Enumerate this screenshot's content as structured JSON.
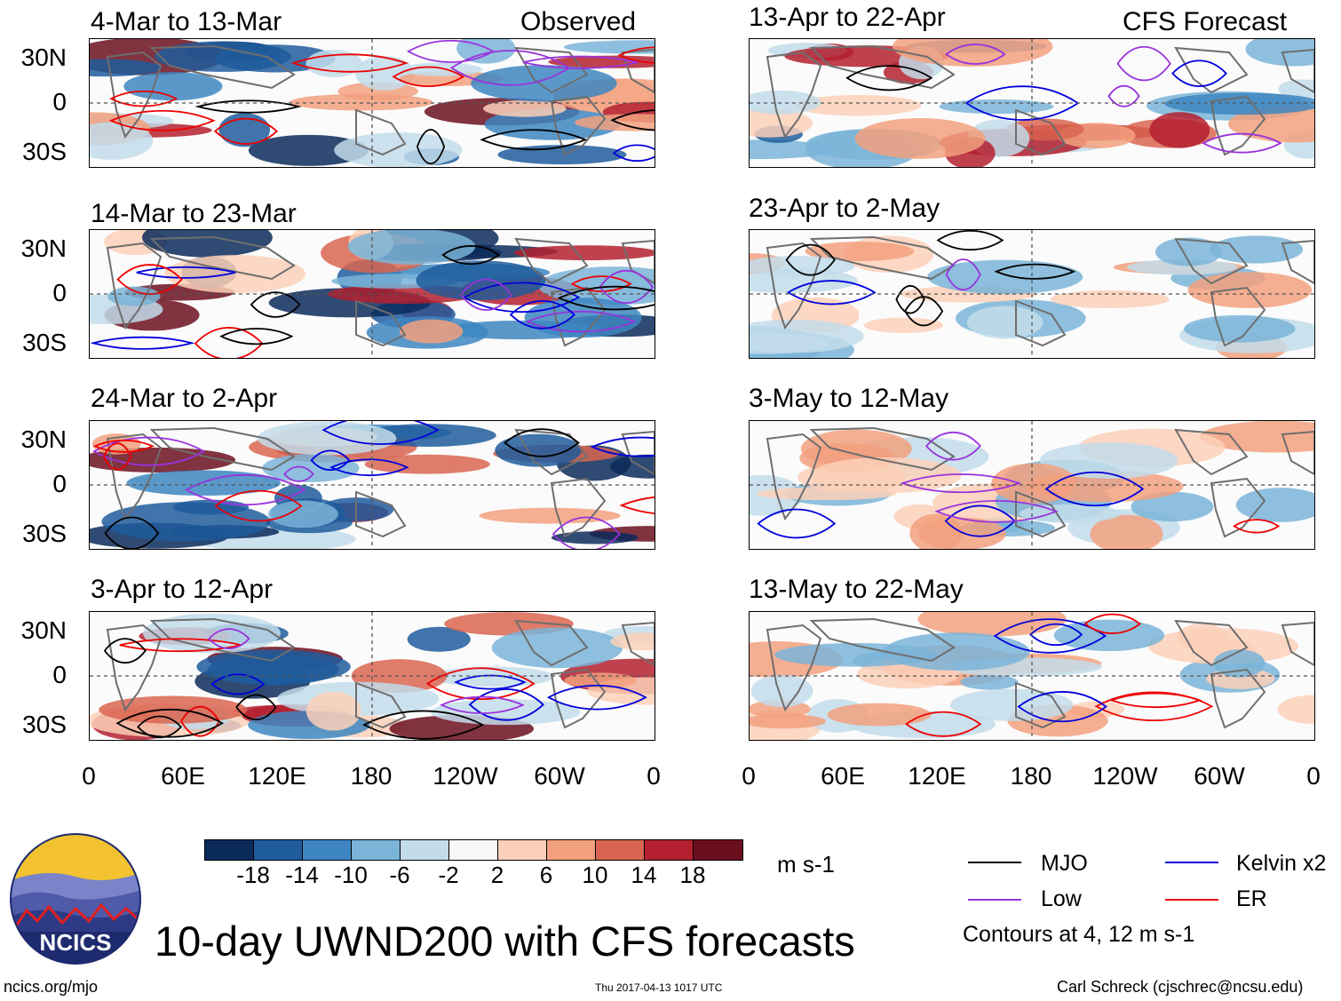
{
  "observed_label": "Observed",
  "forecast_label": "CFS Forecast",
  "panels": [
    {
      "title": "4-Mar to 13-Mar",
      "column": "observed"
    },
    {
      "title": "14-Mar to 23-Mar",
      "column": "observed"
    },
    {
      "title": "24-Mar to 2-Apr",
      "column": "observed"
    },
    {
      "title": "3-Apr to 12-Apr",
      "column": "observed"
    },
    {
      "title": "13-Apr to 22-Apr",
      "column": "forecast"
    },
    {
      "title": "23-Apr to 2-May",
      "column": "forecast"
    },
    {
      "title": "3-May to 12-May",
      "column": "forecast"
    },
    {
      "title": "13-May to 22-May",
      "column": "forecast"
    }
  ],
  "lat_labels": [
    "30N",
    "0",
    "30S"
  ],
  "lon_labels": [
    "0",
    "60E",
    "120E",
    "180",
    "120W",
    "60W",
    "0"
  ],
  "colorbar": {
    "unit": "m s-1",
    "ticks": [
      "-18",
      "-14",
      "-10",
      "-6",
      "-2",
      "2",
      "6",
      "10",
      "14",
      "18"
    ],
    "colors": [
      "#0a2a5a",
      "#1f5c9c",
      "#3d86c1",
      "#7ab4d8",
      "#c2dcea",
      "#f7f7f7",
      "#fbd0b8",
      "#f2a07e",
      "#d96550",
      "#b4202f",
      "#6b0f1e"
    ]
  },
  "legend": {
    "items": [
      {
        "label": "MJO",
        "color": "#000000"
      },
      {
        "label": "Kelvin x2",
        "color": "#0000dd"
      },
      {
        "label": "Low",
        "color": "#9932dd"
      },
      {
        "label": "ER",
        "color": "#ee0000"
      }
    ],
    "note": "Contours at 4, 12 m s-1"
  },
  "logo_text": "NCICS",
  "main_title": "10-day UWND200 with CFS forecasts",
  "footer": {
    "left": "ncics.org/mjo",
    "center": "Thu 2017-04-13 1017 UTC",
    "right": "Carl Schreck (cjschrec@ncsu.edu)"
  }
}
